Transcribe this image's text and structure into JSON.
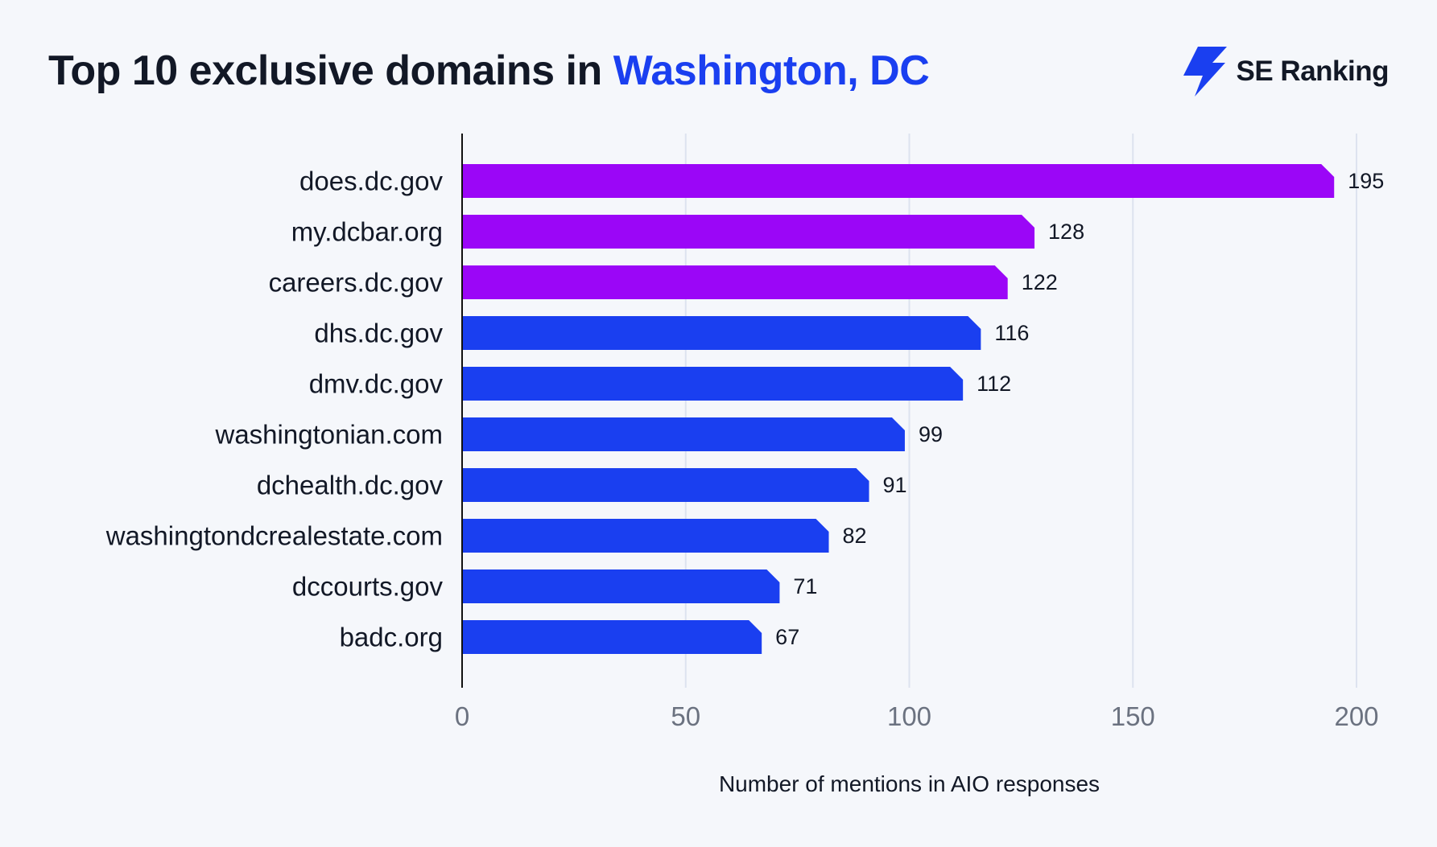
{
  "header": {
    "title_prefix": "Top 10 exclusive domains in ",
    "title_highlight": "Washington, DC",
    "brand_name": "SE Ranking",
    "brand_icon": "lightning-bolt-icon"
  },
  "colors": {
    "background": "#f5f7fb",
    "highlight_text": "#1a3ff0",
    "top_bars": "#9b06f7",
    "other_bars": "#1a3ff0",
    "gridline": "#dde3ef",
    "axis": "#111111"
  },
  "chart_data": {
    "type": "bar",
    "orientation": "horizontal",
    "title": "Top 10 exclusive domains in Washington, DC",
    "xlabel": "Number of mentions in AIO responses",
    "ylabel": "",
    "xlim": [
      0,
      200
    ],
    "xticks": [
      0,
      50,
      100,
      150,
      200
    ],
    "grid": "vertical",
    "categories": [
      "does.dc.gov",
      "my.dcbar.org",
      "careers.dc.gov",
      "dhs.dc.gov",
      "dmv.dc.gov",
      "washingtonian.com",
      "dchealth.dc.gov",
      "washingtondcrealestate.com",
      "dccourts.gov",
      "badc.org"
    ],
    "values": [
      195,
      128,
      122,
      116,
      112,
      99,
      91,
      82,
      71,
      67
    ],
    "bar_colors": [
      "#9b06f7",
      "#9b06f7",
      "#9b06f7",
      "#1a3ff0",
      "#1a3ff0",
      "#1a3ff0",
      "#1a3ff0",
      "#1a3ff0",
      "#1a3ff0",
      "#1a3ff0"
    ]
  }
}
